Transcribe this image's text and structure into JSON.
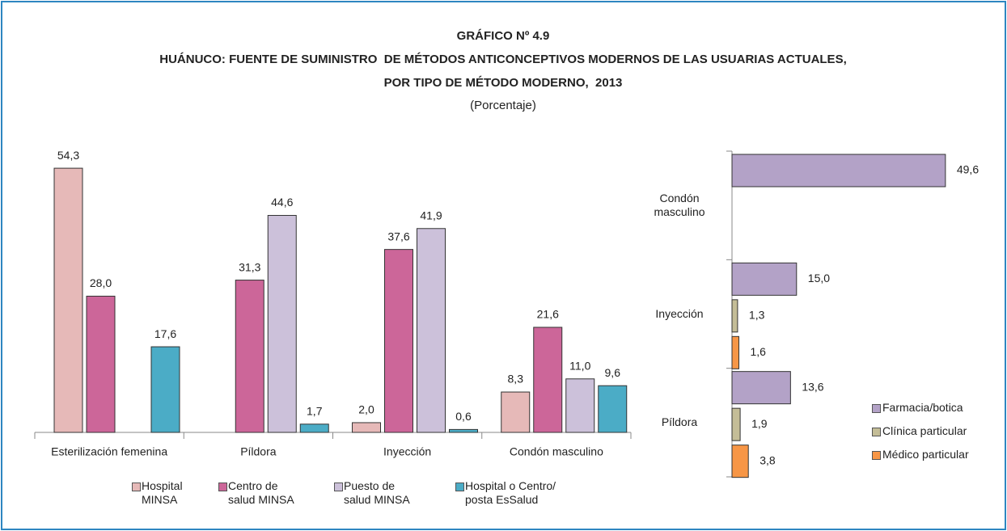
{
  "chart_data": [
    {
      "type": "bar",
      "title": "GRÁFICO Nº 4.9",
      "subtitle": "HUÁNUCO: FUENTE DE SUMINISTRO  DE MÉTODOS ANTICONCEPTIVOS MODERNOS DE LAS USUARIAS ACTUALES,",
      "subtitle2": "POR TIPO DE MÉTODO MODERNO,  2013",
      "unit": "(Porcentaje)",
      "categories": [
        "Esterilización femenina",
        "Píldora",
        "Inyección",
        "Condón masculino"
      ],
      "series": [
        {
          "name": "Hospital MINSA",
          "color": "#e6b9b8",
          "values": [
            54.3,
            null,
            2.0,
            8.3
          ],
          "value_labels": [
            "54,3",
            null,
            "2,0",
            "8,3"
          ]
        },
        {
          "name": "Centro de salud MINSA",
          "color": "#cc6699",
          "values": [
            28.0,
            31.3,
            37.6,
            21.6
          ],
          "value_labels": [
            "28,0",
            "31,3",
            "37,6",
            "21,6"
          ]
        },
        {
          "name": "Puesto de salud MINSA",
          "color": "#ccc1da",
          "values": [
            null,
            44.6,
            41.9,
            11.0
          ],
          "value_labels": [
            null,
            "44,6",
            "41,9",
            "11,0"
          ]
        },
        {
          "name": "Hospital o Centro/ posta EsSalud",
          "color": "#4bacc6",
          "values": [
            17.6,
            1.7,
            0.6,
            9.6
          ],
          "value_labels": [
            "17,6",
            "1,7",
            "0,6",
            "9,6"
          ]
        }
      ]
    },
    {
      "type": "hbar",
      "categories": [
        "Condón masculino",
        "Inyección",
        "Píldora"
      ],
      "series": [
        {
          "name": "Farmacia/botica",
          "color": "#b3a2c7",
          "values": [
            49.6,
            15.0,
            13.6
          ],
          "value_labels": [
            "49,6",
            "15,0",
            "13,6"
          ]
        },
        {
          "name": "Clínica particular",
          "color": "#c4bd97",
          "values": [
            null,
            1.3,
            1.9
          ],
          "value_labels": [
            null,
            "1,3",
            "1,9"
          ]
        },
        {
          "name": "Médico particular",
          "color": "#f79646",
          "values": [
            null,
            1.6,
            3.8
          ],
          "value_labels": [
            null,
            "1,6",
            "3,8"
          ]
        }
      ]
    }
  ]
}
